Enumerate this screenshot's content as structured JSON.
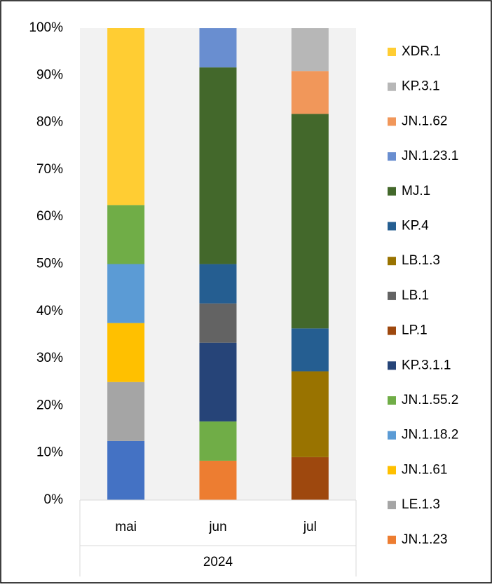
{
  "chart_data": {
    "type": "stacked_bar_percent",
    "categories": [
      "mai",
      "jun",
      "jul"
    ],
    "group_label": "2024",
    "ylim": [
      0,
      100
    ],
    "yticks": [
      {
        "value": 0,
        "label": "0%"
      },
      {
        "value": 10,
        "label": "10%"
      },
      {
        "value": 20,
        "label": "20%"
      },
      {
        "value": 30,
        "label": "30%"
      },
      {
        "value": 40,
        "label": "40%"
      },
      {
        "value": 50,
        "label": "50%"
      },
      {
        "value": 60,
        "label": "60%"
      },
      {
        "value": 70,
        "label": "70%"
      },
      {
        "value": 80,
        "label": "80%"
      },
      {
        "value": 90,
        "label": "90%"
      },
      {
        "value": 100,
        "label": "100%"
      }
    ],
    "legend": "right",
    "series": [
      {
        "color": "#4472c4",
        "values": [
          12.5,
          null,
          null
        ]
      },
      {
        "name": "JN.1.23",
        "color": "#ed7d31",
        "values": [
          null,
          8.33,
          null
        ]
      },
      {
        "name": "LE.1.3",
        "color": "#a5a5a5",
        "values": [
          12.5,
          null,
          null
        ]
      },
      {
        "name": "JN.1.61",
        "color": "#ffc000",
        "values": [
          12.5,
          null,
          null
        ]
      },
      {
        "name": "JN.1.18.2",
        "color": "#5b9bd5",
        "values": [
          12.5,
          null,
          null
        ]
      },
      {
        "name": "JN.1.55.2",
        "color": "#70ad47",
        "values": [
          12.5,
          8.33,
          null
        ]
      },
      {
        "name": "KP.3.1.1",
        "color": "#264478",
        "values": [
          null,
          16.67,
          null
        ]
      },
      {
        "name": "LP.1",
        "color": "#9e480e",
        "values": [
          null,
          null,
          9.09
        ]
      },
      {
        "name": "LB.1",
        "color": "#636363",
        "values": [
          null,
          8.33,
          null
        ]
      },
      {
        "name": "LB.1.3",
        "color": "#997300",
        "values": [
          null,
          null,
          18.18
        ]
      },
      {
        "name": "KP.4",
        "color": "#255e91",
        "values": [
          null,
          8.33,
          9.09
        ]
      },
      {
        "name": "MJ.1",
        "color": "#43682b",
        "values": [
          null,
          41.67,
          45.45
        ]
      },
      {
        "name": "JN.1.23.1",
        "color": "#698ed0",
        "values": [
          null,
          8.33,
          null
        ]
      },
      {
        "name": "JN.1.62",
        "color": "#f1975a",
        "values": [
          null,
          null,
          9.09
        ]
      },
      {
        "name": "KP.3.1",
        "color": "#b7b7b7",
        "values": [
          null,
          null,
          9.09
        ]
      },
      {
        "name": "XDR.1",
        "color": "#ffcd33",
        "values": [
          37.5,
          null,
          null
        ]
      }
    ]
  }
}
